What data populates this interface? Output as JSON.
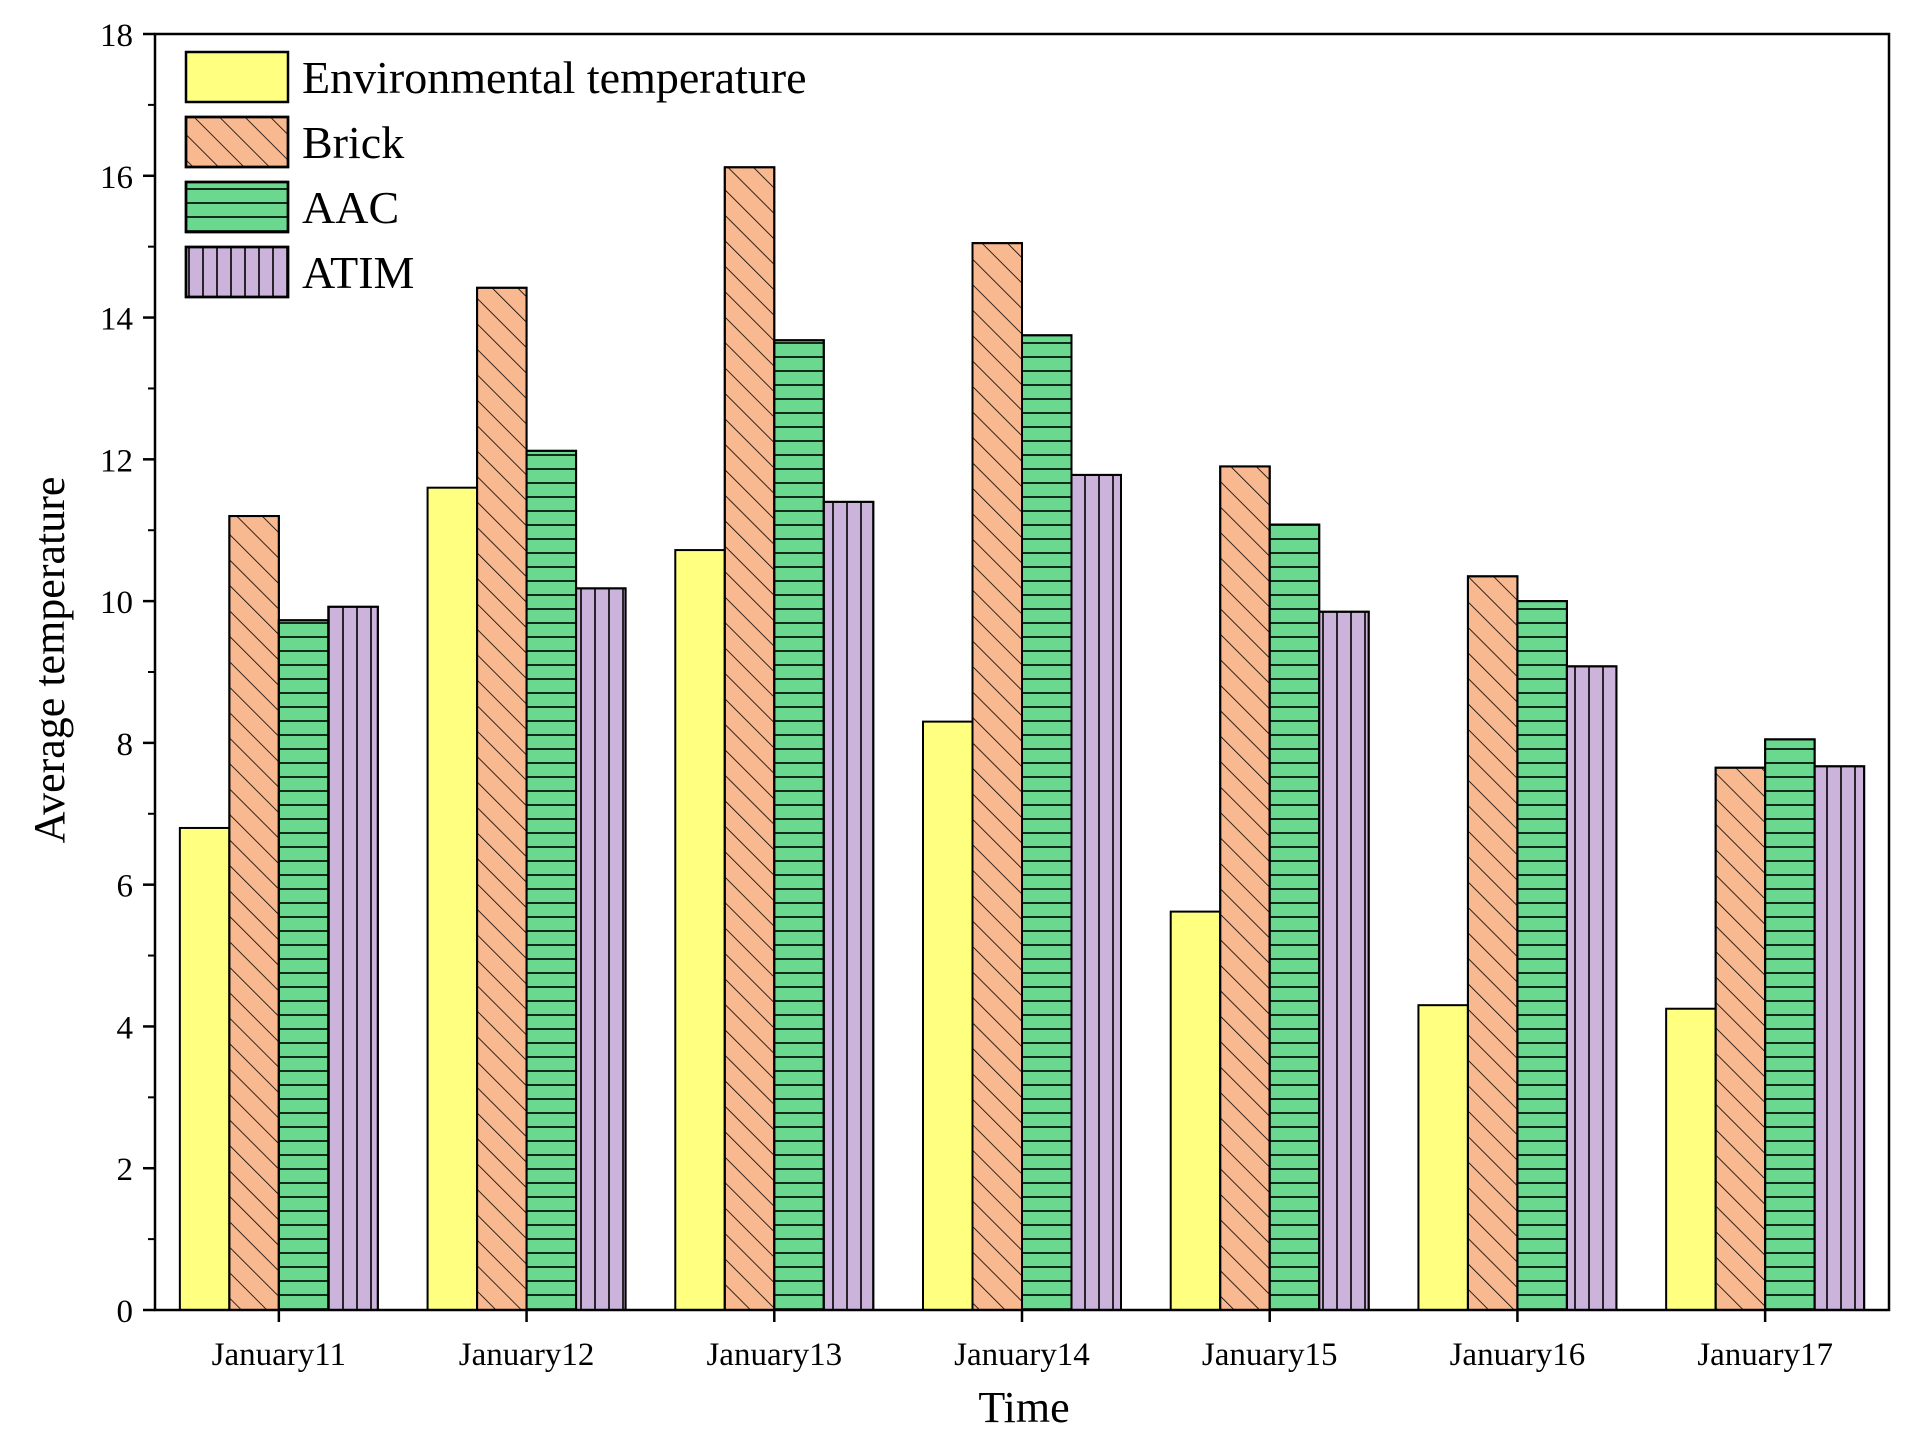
{
  "chart_data": {
    "type": "bar",
    "title": "",
    "xlabel": "Time",
    "ylabel": "Average temperature",
    "ylim": [
      0,
      18
    ],
    "yticks": [
      "0",
      "2",
      "4",
      "6",
      "8",
      "10",
      "12",
      "14",
      "16",
      "18"
    ],
    "categories": [
      "January11",
      "January12",
      "January13",
      "January14",
      "January15",
      "January16",
      "January17"
    ],
    "legend_position": "top-left",
    "series": [
      {
        "name": "Environmental temperature",
        "color": "#ffff80",
        "pattern": "solid",
        "values": [
          6.8,
          11.6,
          10.72,
          8.3,
          5.62,
          4.3,
          4.25
        ]
      },
      {
        "name": "Brick",
        "color": "#f9b990",
        "pattern": "diagonal",
        "values": [
          11.2,
          14.42,
          16.12,
          15.05,
          11.9,
          10.35,
          7.65
        ]
      },
      {
        "name": "AAC",
        "color": "#6ad98f",
        "pattern": "horizontal",
        "values": [
          9.73,
          12.12,
          13.68,
          13.75,
          11.08,
          10.0,
          8.05
        ]
      },
      {
        "name": "ATIM",
        "color": "#cbb3dc",
        "pattern": "vertical",
        "values": [
          9.92,
          10.18,
          11.4,
          11.78,
          9.85,
          9.08,
          7.67
        ]
      }
    ]
  }
}
